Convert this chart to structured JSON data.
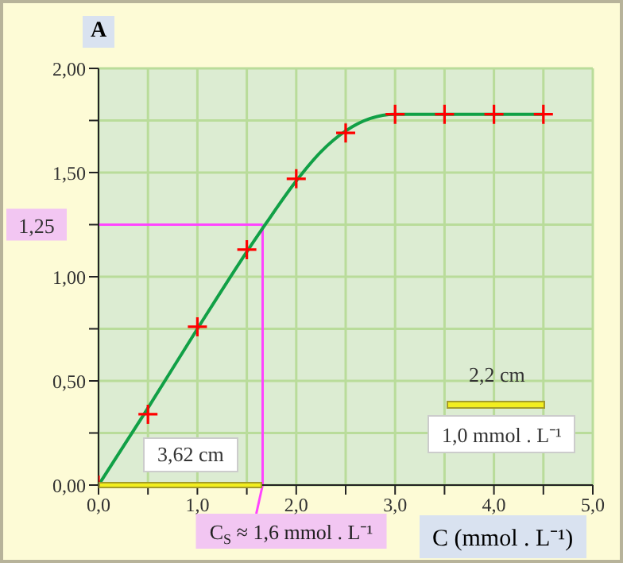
{
  "chart_data": {
    "type": "scatter",
    "xlabel": "C (mmol . L⁻¹)",
    "ylabel": "A",
    "series": [
      {
        "type": "line",
        "color": "#11a046",
        "marker": "none",
        "x": [
          0,
          0.5,
          1,
          1.5,
          1.7,
          2,
          2.25,
          2.5,
          2.75,
          3,
          3.5,
          4,
          4.5
        ],
        "values": [
          0,
          0.37,
          0.75,
          1.12,
          1.26,
          1.46,
          1.6,
          1.7,
          1.76,
          1.78,
          1.78,
          1.78,
          1.78
        ]
      },
      {
        "color": "#ff0000",
        "marker": "cross",
        "x": [
          0,
          0.5,
          1,
          1.5,
          2,
          2.5,
          3,
          3.5,
          4,
          4.5
        ],
        "values": [
          0,
          0.34,
          0.76,
          1.13,
          1.47,
          1.69,
          1.78,
          1.78,
          1.78,
          1.78
        ]
      }
    ],
    "xlim": [
      0,
      5
    ],
    "ylim": [
      0,
      2
    ],
    "xticks": [
      {
        "value": 0,
        "label": "0,0"
      },
      {
        "value": 0.5,
        "label": null
      },
      {
        "value": 1,
        "label": "1,0"
      },
      {
        "value": 1.5,
        "label": null
      },
      {
        "value": 2,
        "label": "2,0"
      },
      {
        "value": 2.5,
        "label": null
      },
      {
        "value": 3,
        "label": "3,0"
      },
      {
        "value": 3.5,
        "label": null
      },
      {
        "value": 4,
        "label": "4,0"
      },
      {
        "value": 4.5,
        "label": null
      },
      {
        "value": 5,
        "label": "5,0"
      }
    ],
    "yticks": [
      {
        "value": 0,
        "label": "0,00"
      },
      {
        "value": 0.25,
        "label": null
      },
      {
        "value": 0.5,
        "label": "0,50"
      },
      {
        "value": 0.75,
        "label": null
      },
      {
        "value": 1,
        "label": "1,00"
      },
      {
        "value": 1.25,
        "label": null
      },
      {
        "value": 1.5,
        "label": "1,50"
      },
      {
        "value": 1.75,
        "label": null
      },
      {
        "value": 2,
        "label": "2,00"
      }
    ],
    "grid": true,
    "ref_lines": [
      {
        "axis": "y",
        "value": 1.25,
        "label": "1,25",
        "color": "#ff44ff"
      },
      {
        "axis": "x",
        "value": 1.66,
        "label": "C$_{S}$ ≈ 1,6 mmol . L⁻¹",
        "color": "#ff44ff"
      }
    ],
    "annotations": [
      "3,62 cm",
      "2,2 cm",
      "1,0 mmol . L⁻¹"
    ]
  }
}
